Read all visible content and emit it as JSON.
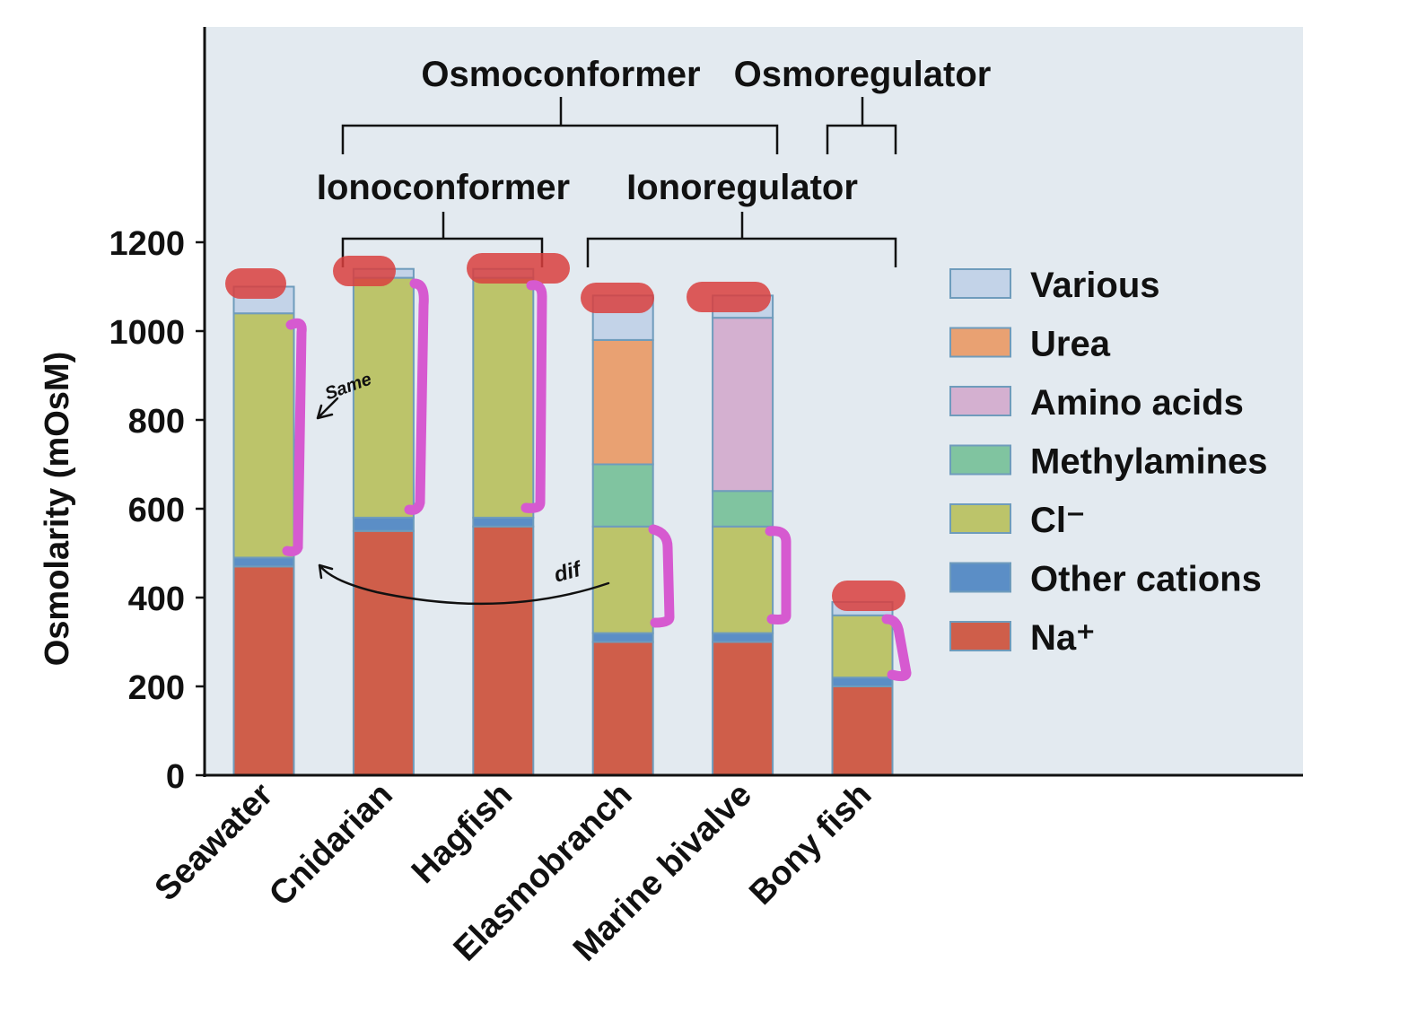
{
  "chart_data": {
    "type": "bar",
    "stacked": true,
    "title": "",
    "xlabel": "",
    "ylabel": "Osmolarity (mOsM)",
    "ylim": [
      0,
      1200
    ],
    "yticks": [
      0,
      200,
      400,
      600,
      800,
      1000,
      1200
    ],
    "grid": false,
    "legend_position": "right",
    "categories": [
      "Seawater",
      "Cnidarian",
      "Hagfish",
      "Elasmobranch",
      "Marine bivalve",
      "Bony fish"
    ],
    "series": [
      {
        "name": "Na⁺",
        "color": "#cf5e4a",
        "values": [
          470,
          550,
          560,
          300,
          300,
          200
        ]
      },
      {
        "name": "Other cations",
        "color": "#5b8ec6",
        "values": [
          20,
          30,
          20,
          20,
          20,
          20
        ]
      },
      {
        "name": "Cl⁻",
        "color": "#bcc46a",
        "values": [
          550,
          540,
          540,
          240,
          240,
          140
        ]
      },
      {
        "name": "Methylamines",
        "color": "#80c4a0",
        "values": [
          0,
          0,
          0,
          140,
          80,
          0
        ]
      },
      {
        "name": "Amino acids",
        "color": "#d4b0d0",
        "values": [
          0,
          0,
          0,
          0,
          390,
          0
        ]
      },
      {
        "name": "Urea",
        "color": "#e9a172",
        "values": [
          0,
          0,
          0,
          280,
          0,
          0
        ]
      },
      {
        "name": "Various",
        "color": "#c3d3e8",
        "values": [
          60,
          20,
          20,
          100,
          50,
          30
        ]
      }
    ],
    "legend_order": [
      "Various",
      "Urea",
      "Amino acids",
      "Methylamines",
      "Cl⁻",
      "Other cations",
      "Na⁺"
    ],
    "group_labels": {
      "osmoconformer": "Osmoconformer",
      "osmoregulator": "Osmoregulator",
      "ionoconformer": "Ionoconformer",
      "ionoregulator": "Ionoregulator"
    },
    "annotations": {
      "same": "Same",
      "dif": "dif",
      "highlight_color": "#d9403e",
      "bracket_color": "#d65ad0"
    }
  }
}
